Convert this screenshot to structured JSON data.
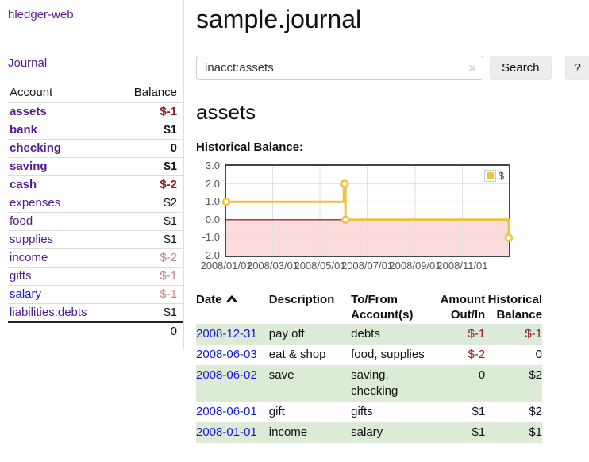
{
  "app": {
    "brand": "hledger-web"
  },
  "sidebar": {
    "journal_link": "Journal",
    "accounts": {
      "header_account": "Account",
      "header_balance": "Balance",
      "rows": [
        {
          "account": "assets",
          "balance": "$-1",
          "indent": 1,
          "bold": true,
          "balance_class": "neg"
        },
        {
          "account": "bank",
          "balance": "$1",
          "indent": 2,
          "bold": true,
          "balance_class": ""
        },
        {
          "account": "checking",
          "balance": "0",
          "indent": 3,
          "bold": true,
          "balance_class": ""
        },
        {
          "account": "saving",
          "balance": "$1",
          "indent": 3,
          "bold": true,
          "balance_class": ""
        },
        {
          "account": "cash",
          "balance": "$-2",
          "indent": 2,
          "bold": true,
          "balance_class": "neg"
        },
        {
          "account": "expenses",
          "balance": "$2",
          "indent": 1,
          "bold": false,
          "balance_class": ""
        },
        {
          "account": "food",
          "balance": "$1",
          "indent": 2,
          "bold": false,
          "balance_class": ""
        },
        {
          "account": "supplies",
          "balance": "$1",
          "indent": 2,
          "bold": false,
          "balance_class": ""
        },
        {
          "account": "income",
          "balance": "$-2",
          "indent": 1,
          "bold": false,
          "balance_class": "negdim"
        },
        {
          "account": "gifts",
          "balance": "$-1",
          "indent": 2,
          "bold": false,
          "balance_class": "negdim"
        },
        {
          "account": "salary",
          "balance": "$-1",
          "indent": 2,
          "bold": false,
          "link": "unvisited",
          "balance_class": "negdim"
        },
        {
          "account": "liabilities:debts",
          "balance": "$1",
          "indent": 1,
          "bold": false,
          "balance_class": ""
        }
      ],
      "total": "0"
    }
  },
  "main": {
    "title": "sample.journal",
    "search": {
      "value": "inacct:assets",
      "clear_icon": "×",
      "search_button": "Search",
      "help_button": "?"
    },
    "account_heading": "assets",
    "section_label": "Historical Balance:"
  },
  "chart_data": {
    "type": "line",
    "title": "Historical Balance",
    "step": true,
    "series": [
      {
        "name": "$",
        "color": "#edc240",
        "points": [
          {
            "x": "2008-01-01",
            "y": 1
          },
          {
            "x": "2008-06-01",
            "y": 2
          },
          {
            "x": "2008-06-02",
            "y": 2
          },
          {
            "x": "2008-06-03",
            "y": 0
          },
          {
            "x": "2008-12-31",
            "y": -1
          }
        ]
      }
    ],
    "xlim": [
      "2008-01-01",
      "2008-12-31"
    ],
    "ylim": [
      -2,
      3
    ],
    "y_ticks": [
      3,
      2,
      1,
      0,
      -1,
      -2
    ],
    "y_tick_labels": [
      "3.0",
      "2.0",
      "1.0",
      "0.0",
      "-1.0",
      "-2.0"
    ],
    "x_ticks": [
      "2008-01-01",
      "2008-03-01",
      "2008-05-01",
      "2008-07-01",
      "2008-09-01",
      "2008-11-01"
    ],
    "x_tick_labels": [
      "2008/01/01",
      "2008/03/01",
      "2008/05/01",
      "2008/07/01",
      "2008/09/01",
      "2008/11/01"
    ],
    "legend": {
      "label": "$",
      "position": "top-right"
    },
    "grid": true,
    "gridline_color": "#e0e0e0",
    "negative_region_color": "#fbdcdc",
    "zero_line_color": "#8b0000"
  },
  "register": {
    "headers": {
      "date": "Date",
      "description": "Description",
      "accounts": "To/From Account(s)",
      "amount": "Amount Out/In",
      "balance": "Historical Balance"
    },
    "sort": "ascending",
    "rows": [
      {
        "date": "2008-12-31",
        "description": "pay off",
        "accounts": "debts",
        "amount": "$-1",
        "amount_class": "neg",
        "balance": "$-1",
        "balance_class": "neg"
      },
      {
        "date": "2008-06-03",
        "description": "eat & shop",
        "accounts": "food, supplies",
        "amount": "$-2",
        "amount_class": "neg",
        "balance": "0",
        "balance_class": ""
      },
      {
        "date": "2008-06-02",
        "description": "save",
        "accounts": "saving, checking",
        "amount": "0",
        "amount_class": "",
        "balance": "$2",
        "balance_class": ""
      },
      {
        "date": "2008-06-01",
        "description": "gift",
        "accounts": "gifts",
        "amount": "$1",
        "amount_class": "",
        "balance": "$2",
        "balance_class": ""
      },
      {
        "date": "2008-01-01",
        "description": "income",
        "accounts": "salary",
        "amount": "$1",
        "amount_class": "",
        "balance": "$1",
        "balance_class": ""
      }
    ]
  },
  "colors": {
    "link_visited": "#551a8b",
    "link_unvisited": "#1414e0",
    "negative": "#8c1a27",
    "negative_dim": "#c98083",
    "row_stripe": "#dcebd5",
    "series": "#edc240"
  }
}
